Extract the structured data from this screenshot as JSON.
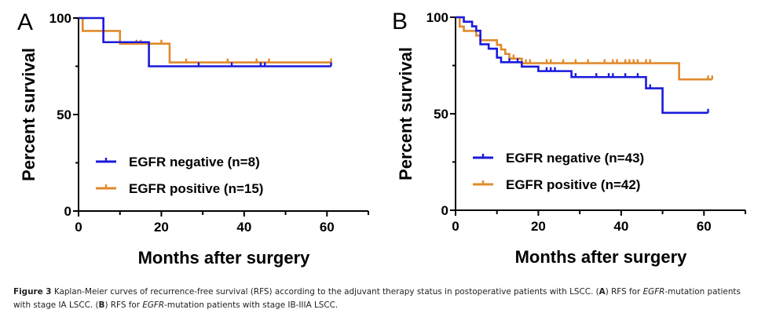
{
  "chart_data": [
    {
      "type": "line",
      "subtype": "kaplan-meier-step",
      "panel": "A",
      "xlabel": "Months after surgery",
      "ylabel": "Percent survival",
      "xlim": [
        0,
        70
      ],
      "ylim": [
        0,
        100
      ],
      "xticks": [
        0,
        20,
        40,
        60
      ],
      "xminor": [
        10,
        30,
        50,
        70
      ],
      "yticks": [
        0,
        50,
        100
      ],
      "yminor": [
        25,
        75
      ],
      "legend_position": "lower-left",
      "series": [
        {
          "name": "EGFR negative (n=8)",
          "color": "#1a1adb",
          "steps": [
            [
              0,
              100
            ],
            [
              6,
              87.5
            ],
            [
              17,
              75
            ],
            [
              61,
              75
            ]
          ],
          "censored": [
            [
              17,
              75
            ],
            [
              29,
              75
            ],
            [
              37,
              75
            ],
            [
              44,
              75
            ],
            [
              45,
              75
            ],
            [
              61,
              75
            ]
          ]
        },
        {
          "name": "EGFR positive (n=15)",
          "color": "#e08a2c",
          "steps": [
            [
              0,
              100
            ],
            [
              1,
              93.3
            ],
            [
              10,
              86.7
            ],
            [
              22,
              77
            ],
            [
              61,
              77
            ]
          ],
          "censored": [
            [
              1,
              93.3
            ],
            [
              14,
              86.7
            ],
            [
              15,
              86.7
            ],
            [
              20,
              86.7
            ],
            [
              26,
              77
            ],
            [
              36,
              77
            ],
            [
              43,
              77
            ],
            [
              46,
              77
            ],
            [
              61,
              77
            ]
          ]
        }
      ]
    },
    {
      "type": "line",
      "subtype": "kaplan-meier-step",
      "panel": "B",
      "xlabel": "Months after surgery",
      "ylabel": "Percent survival",
      "xlim": [
        0,
        70
      ],
      "ylim": [
        0,
        100
      ],
      "xticks": [
        0,
        20,
        40,
        60
      ],
      "xminor": [
        10,
        30,
        50,
        70
      ],
      "yticks": [
        0,
        50,
        100
      ],
      "yminor": [
        25,
        75
      ],
      "legend_position": "lower-left",
      "series": [
        {
          "name": "EGFR negative (n=43)",
          "color": "#1a1adb",
          "steps": [
            [
              0,
              100
            ],
            [
              2,
              97.7
            ],
            [
              4,
              95.3
            ],
            [
              5,
              93
            ],
            [
              6,
              86
            ],
            [
              8,
              83.7
            ],
            [
              10,
              79.1
            ],
            [
              11,
              76.7
            ],
            [
              16,
              74.4
            ],
            [
              20,
              72.1
            ],
            [
              28,
              69
            ],
            [
              46,
              63.2
            ],
            [
              50,
              50.5
            ],
            [
              61,
              50.5
            ]
          ],
          "censored": [
            [
              13,
              76.7
            ],
            [
              15,
              76.7
            ],
            [
              22,
              72.1
            ],
            [
              23,
              72.1
            ],
            [
              24,
              72.1
            ],
            [
              29,
              69
            ],
            [
              34,
              69
            ],
            [
              37,
              69
            ],
            [
              38,
              69
            ],
            [
              41,
              69
            ],
            [
              44,
              69
            ],
            [
              47,
              63.2
            ],
            [
              61,
              50.5
            ]
          ]
        },
        {
          "name": "EGFR positive (n=42)",
          "color": "#e08a2c",
          "steps": [
            [
              0,
              100
            ],
            [
              1,
              95.2
            ],
            [
              2,
              92.9
            ],
            [
              5,
              90.5
            ],
            [
              6,
              88.1
            ],
            [
              10,
              85.7
            ],
            [
              11,
              83.3
            ],
            [
              12,
              81
            ],
            [
              13,
              78.6
            ],
            [
              16,
              76.2
            ],
            [
              54,
              67.8
            ],
            [
              62,
              67.8
            ]
          ],
          "censored": [
            [
              14,
              78.6
            ],
            [
              17,
              76.2
            ],
            [
              18,
              76.2
            ],
            [
              22,
              76.2
            ],
            [
              23,
              76.2
            ],
            [
              26,
              76.2
            ],
            [
              29,
              76.2
            ],
            [
              32,
              76.2
            ],
            [
              36,
              76.2
            ],
            [
              38,
              76.2
            ],
            [
              39,
              76.2
            ],
            [
              41,
              76.2
            ],
            [
              42,
              76.2
            ],
            [
              43,
              76.2
            ],
            [
              44,
              76.2
            ],
            [
              46,
              76.2
            ],
            [
              47,
              76.2
            ],
            [
              61,
              67.8
            ],
            [
              62,
              67.8
            ]
          ]
        }
      ]
    }
  ],
  "caption": {
    "label": "Figure 3",
    "text_1": " Kaplan-Meier curves of recurrence-free survival (RFS) according to the adjuvant therapy status in postoperative patients with LSCC. (",
    "a": "A",
    "text_2": ") RFS for ",
    "egfr1": "EGFR",
    "text_3": "-mutation patients with stage IA LSCC. (",
    "b": "B",
    "text_4": ") RFS for ",
    "egfr2": "EGFR",
    "text_5": "-mutation patients with stage IB-IIIA LSCC."
  }
}
